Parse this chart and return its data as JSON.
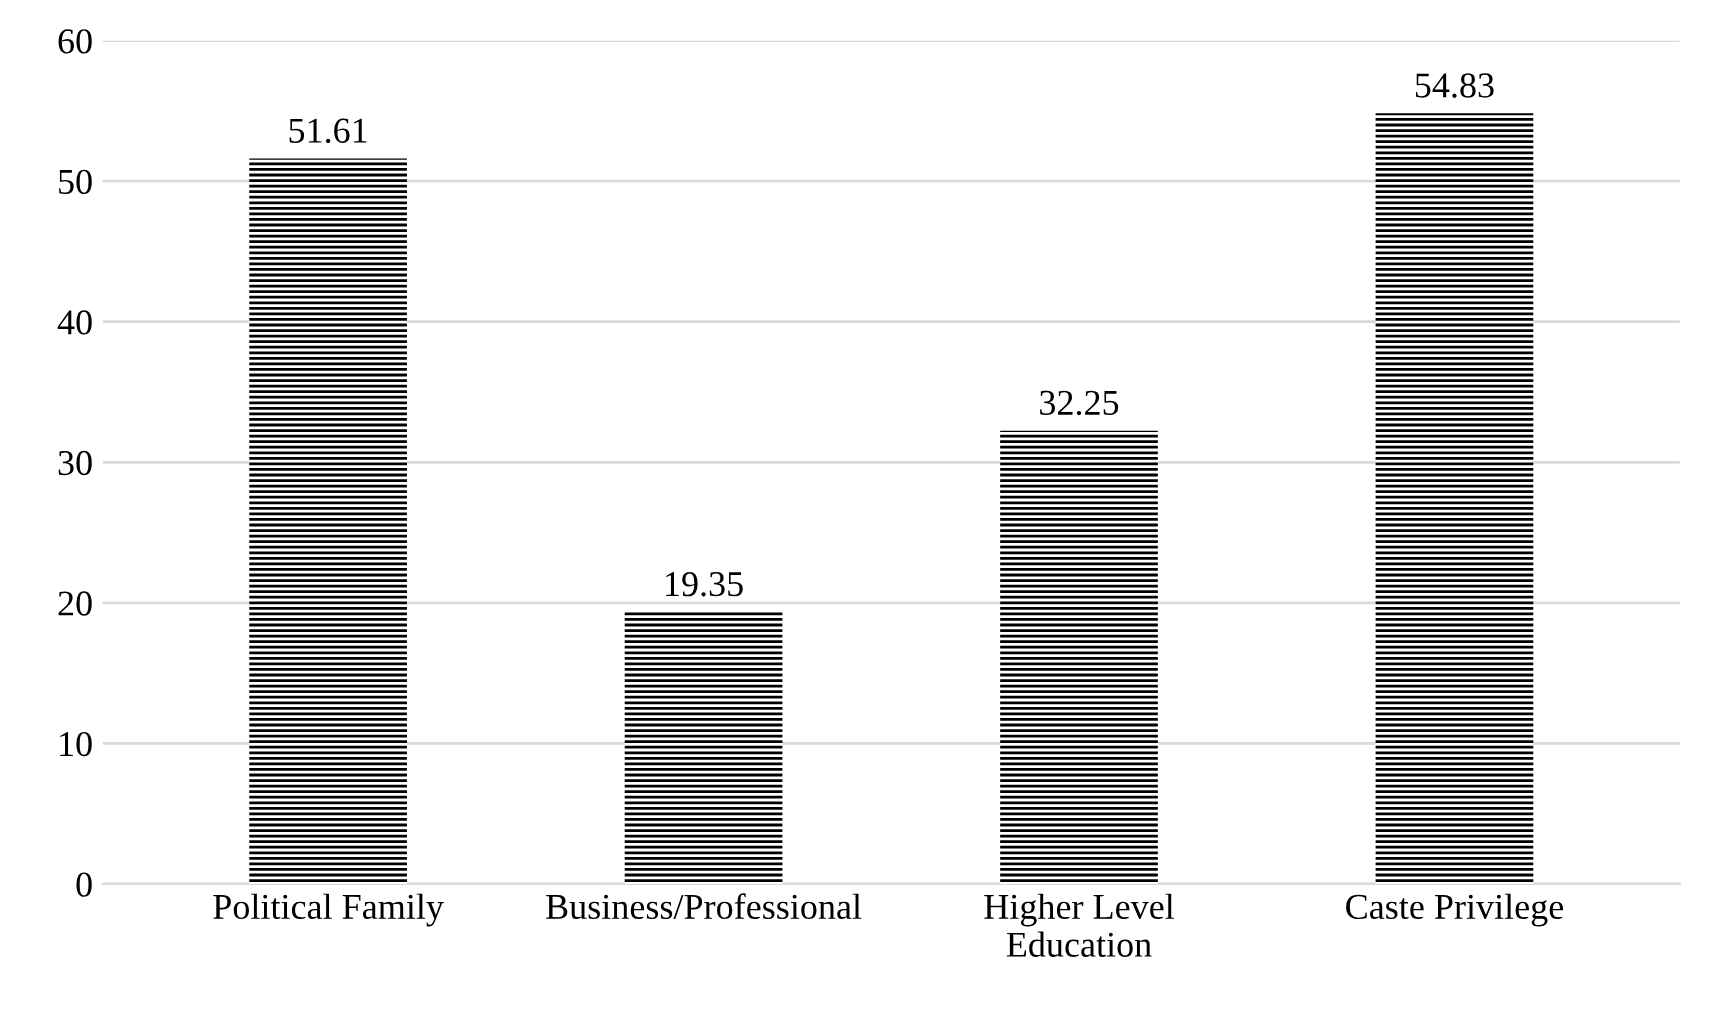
{
  "chart_data": {
    "type": "bar",
    "categories": [
      "Political Family",
      "Business/Professional",
      "Higher Level\nEducation",
      "Caste Privilege"
    ],
    "values": [
      51.61,
      19.35,
      32.25,
      54.83
    ],
    "color": "#000000",
    "ylim": [
      0,
      60
    ],
    "yticks": [
      0,
      10,
      20,
      30,
      40,
      50,
      60
    ],
    "grid": "y",
    "data_labels": true
  }
}
